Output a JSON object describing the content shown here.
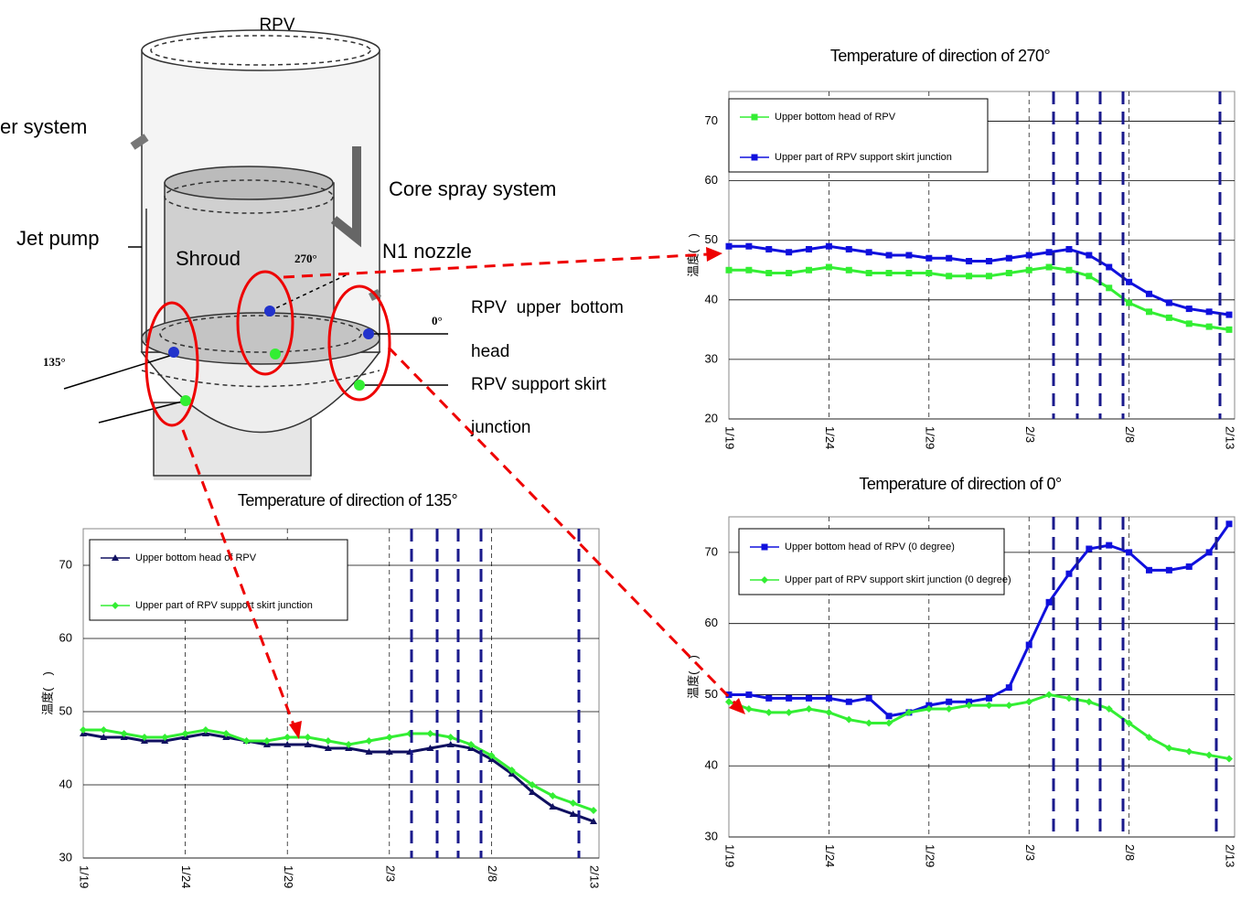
{
  "diagram": {
    "rpv": "RPV",
    "feedwater": "er system",
    "core_spray": "Core spray system",
    "jet_pump": "Jet pump",
    "shroud": "Shroud",
    "angle_270": "270°",
    "n1_nozzle": "N1 nozzle",
    "angle_0": "0°",
    "upper_bottom_1": "RPV  upper  bottom",
    "upper_bottom_2": "head",
    "angle_135": "135°",
    "support_skirt_1": "RPV support skirt",
    "support_skirt_2": "junction"
  },
  "chart_data": [
    {
      "type": "line",
      "title": "Temperature of direction of 270°",
      "y_label": "温度(　)",
      "categories": [
        "1/19",
        null,
        null,
        null,
        null,
        "1/24",
        null,
        null,
        null,
        null,
        "1/29",
        null,
        null,
        null,
        null,
        "2/3",
        null,
        null,
        null,
        null,
        "2/8",
        null,
        null,
        null,
        null,
        "2/13"
      ],
      "series": [
        {
          "name": "Upper bottom head of RPV",
          "color": "#33ee33",
          "marker": "square",
          "values": [
            45,
            45,
            44.5,
            44.5,
            45,
            45.5,
            45,
            44.5,
            44.5,
            44.5,
            44.5,
            44,
            44,
            44,
            44.5,
            45,
            45.5,
            45,
            44,
            42,
            39.5,
            38,
            37,
            36,
            35.5,
            35
          ]
        },
        {
          "name": "Upper part of RPV support skirt junction",
          "color": "#1010dd",
          "marker": "square",
          "values": [
            49,
            49,
            48.5,
            48,
            48.5,
            49,
            48.5,
            48,
            47.5,
            47.5,
            47,
            47,
            46.5,
            46.5,
            47,
            47.5,
            48,
            48.5,
            47.5,
            45.5,
            43,
            41,
            39.5,
            38.5,
            38,
            37.5
          ]
        }
      ],
      "ylim": [
        20,
        75
      ],
      "yticks": [
        20,
        30,
        40,
        50,
        60,
        70
      ],
      "grid": true,
      "legend": "top-left"
    },
    {
      "type": "line",
      "title": "Temperature of direction of 135°",
      "y_label": "温度(　)",
      "categories": [
        "1/19",
        null,
        null,
        null,
        null,
        "1/24",
        null,
        null,
        null,
        null,
        "1/29",
        null,
        null,
        null,
        null,
        "2/3",
        null,
        null,
        null,
        null,
        "2/8",
        null,
        null,
        null,
        null,
        "2/13"
      ],
      "series": [
        {
          "name": "Upper bottom head of RPV",
          "color": "#101060",
          "marker": "triangle",
          "values": [
            47,
            46.5,
            46.5,
            46,
            46,
            46.5,
            47,
            46.5,
            46,
            45.5,
            45.5,
            45.5,
            45,
            45,
            44.5,
            44.5,
            44.5,
            45,
            45.5,
            45,
            43.5,
            41.5,
            39,
            37,
            36,
            35
          ]
        },
        {
          "name": "Upper part of RPV support skirt junction",
          "color": "#33ee33",
          "marker": "diamond",
          "values": [
            47.5,
            47.5,
            47,
            46.5,
            46.5,
            47,
            47.5,
            47,
            46,
            46,
            46.5,
            46.5,
            46,
            45.5,
            46,
            46.5,
            47,
            47,
            46.5,
            45.5,
            44,
            42,
            40,
            38.5,
            37.5,
            36.5
          ]
        }
      ],
      "ylim": [
        30,
        75
      ],
      "yticks": [
        30,
        40,
        50,
        60,
        70
      ],
      "grid": true,
      "legend": "top-left"
    },
    {
      "type": "line",
      "title": "Temperature of direction of 0°",
      "y_label": "温度(　)",
      "categories": [
        "1/19",
        null,
        null,
        null,
        null,
        "1/24",
        null,
        null,
        null,
        null,
        "1/29",
        null,
        null,
        null,
        null,
        "2/3",
        null,
        null,
        null,
        null,
        "2/8",
        null,
        null,
        null,
        null,
        "2/13"
      ],
      "series": [
        {
          "name": "Upper bottom head of RPV (0 degree)",
          "color": "#1010dd",
          "marker": "square",
          "values": [
            50,
            50,
            49.5,
            49.5,
            49.5,
            49.5,
            49,
            49.5,
            47,
            47.5,
            48.5,
            49,
            49,
            49.5,
            51,
            57,
            63,
            67,
            70.5,
            71,
            70,
            67.5,
            67.5,
            68,
            70,
            74
          ]
        },
        {
          "name": "Upper part of RPV support skirt junction (0 degree)",
          "color": "#33ee33",
          "marker": "diamond",
          "values": [
            49,
            48,
            47.5,
            47.5,
            48,
            47.5,
            46.5,
            46,
            46,
            47.5,
            48,
            48,
            48.5,
            48.5,
            48.5,
            49,
            50,
            49.5,
            49,
            48,
            46,
            44,
            42.5,
            42,
            41.5,
            41
          ]
        }
      ],
      "ylim": [
        30,
        75
      ],
      "yticks": [
        30,
        40,
        50,
        60,
        70
      ],
      "grid": true,
      "legend": "top-left"
    }
  ]
}
